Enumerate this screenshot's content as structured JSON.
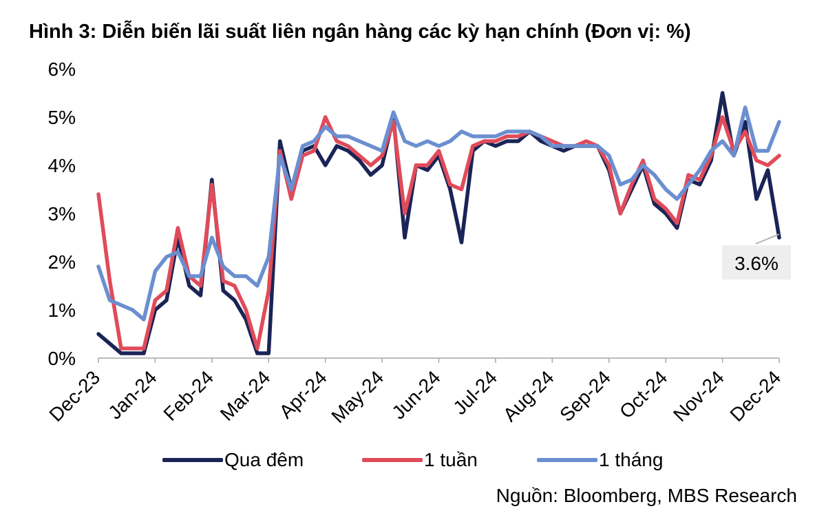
{
  "chart_data": {
    "type": "line",
    "title": "Hình 3: Diễn biến lãi suất liên ngân hàng các kỳ hạn chính (Đơn vị: %)",
    "y_ticks": [
      "0%",
      "1%",
      "2%",
      "3%",
      "4%",
      "5%",
      "6%"
    ],
    "ylim": [
      0,
      6
    ],
    "x_ticks": [
      "Dec-23",
      "Jan-24",
      "Feb-24",
      "Mar-24",
      "Apr-24",
      "May-24",
      "Jun-24",
      "Jul-24",
      "Aug-24",
      "Sep-24",
      "Oct-24",
      "Nov-24",
      "Dec-24"
    ],
    "grid": false,
    "legend_position": "bottom",
    "annotation": "3.6%",
    "x": [
      0,
      0.2,
      0.4,
      0.6,
      0.8,
      1.0,
      1.2,
      1.4,
      1.6,
      1.8,
      2.0,
      2.2,
      2.4,
      2.6,
      2.8,
      3.0,
      3.2,
      3.4,
      3.6,
      3.8,
      4.0,
      4.2,
      4.4,
      4.6,
      4.8,
      5.0,
      5.2,
      5.4,
      5.6,
      5.8,
      6.0,
      6.2,
      6.4,
      6.6,
      6.8,
      7.0,
      7.2,
      7.4,
      7.6,
      7.8,
      8.0,
      8.2,
      8.4,
      8.6,
      8.8,
      9.0,
      9.2,
      9.4,
      9.6,
      9.8,
      10.0,
      10.2,
      10.4,
      10.6,
      10.8,
      11.0,
      11.2,
      11.4,
      11.6,
      11.8,
      12.0
    ],
    "series": [
      {
        "name": "Qua đêm",
        "color": "#1a2456",
        "values": [
          0.5,
          0.3,
          0.1,
          0.1,
          0.1,
          1.0,
          1.2,
          2.5,
          1.5,
          1.3,
          3.7,
          1.4,
          1.2,
          0.8,
          0.1,
          0.1,
          4.5,
          3.5,
          4.3,
          4.4,
          4.0,
          4.4,
          4.3,
          4.1,
          3.8,
          4.0,
          5.0,
          2.5,
          4.0,
          3.9,
          4.2,
          3.5,
          2.4,
          4.3,
          4.5,
          4.4,
          4.5,
          4.5,
          4.7,
          4.5,
          4.4,
          4.3,
          4.4,
          4.4,
          4.4,
          3.9,
          3.0,
          3.5,
          4.0,
          3.2,
          3.0,
          2.7,
          3.7,
          3.6,
          4.1,
          5.5,
          4.2,
          4.9,
          3.3,
          3.9,
          2.5
        ]
      },
      {
        "name": "1 tuần",
        "color": "#e04b5a",
        "values": [
          3.4,
          1.6,
          0.2,
          0.2,
          0.2,
          1.2,
          1.4,
          2.7,
          1.7,
          1.5,
          3.6,
          1.6,
          1.5,
          1.0,
          0.2,
          1.4,
          4.3,
          3.3,
          4.2,
          4.3,
          5.0,
          4.5,
          4.4,
          4.2,
          4.0,
          4.2,
          4.9,
          3.0,
          4.0,
          4.0,
          4.3,
          3.6,
          3.5,
          4.4,
          4.5,
          4.5,
          4.6,
          4.6,
          4.7,
          4.6,
          4.5,
          4.4,
          4.4,
          4.5,
          4.4,
          4.0,
          3.0,
          3.6,
          4.1,
          3.3,
          3.1,
          2.8,
          3.8,
          3.7,
          4.2,
          5.0,
          4.3,
          4.7,
          4.1,
          4.0,
          4.2
        ]
      },
      {
        "name": "1 tháng",
        "color": "#6b8fd0",
        "values": [
          1.9,
          1.2,
          1.1,
          1.0,
          0.8,
          1.8,
          2.1,
          2.2,
          1.7,
          1.7,
          2.5,
          1.9,
          1.7,
          1.7,
          1.5,
          2.1,
          4.2,
          3.5,
          4.4,
          4.5,
          4.8,
          4.6,
          4.6,
          4.5,
          4.4,
          4.3,
          5.1,
          4.5,
          4.4,
          4.5,
          4.4,
          4.5,
          4.7,
          4.6,
          4.6,
          4.6,
          4.7,
          4.7,
          4.7,
          4.6,
          4.4,
          4.4,
          4.4,
          4.4,
          4.4,
          4.2,
          3.6,
          3.7,
          4.0,
          3.8,
          3.5,
          3.3,
          3.6,
          3.9,
          4.3,
          4.5,
          4.2,
          5.2,
          4.3,
          4.3,
          4.9
        ]
      }
    ]
  },
  "source_text": "Nguồn: Bloomberg, MBS Research"
}
